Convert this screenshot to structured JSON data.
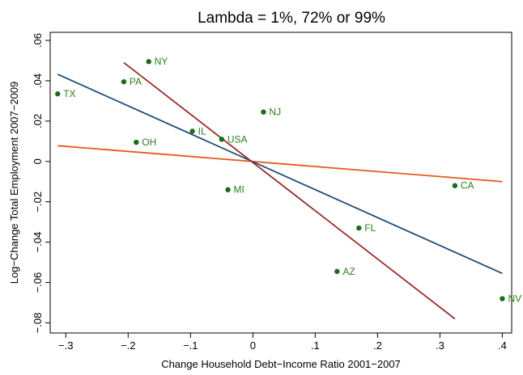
{
  "chart_data": {
    "type": "scatter",
    "title": "Lambda = 1%, 72% or 99%",
    "xlabel": "Change Household Debt−Income Ratio 2001−2007",
    "ylabel": "Log−Change Total Employment 2007−2009",
    "xlim": [
      -0.325,
      0.415
    ],
    "ylim": [
      -0.085,
      0.064
    ],
    "x_ticks": [
      -0.3,
      -0.2,
      -0.1,
      0,
      0.1,
      0.2,
      0.3,
      0.4
    ],
    "x_tick_labels": [
      "−.3",
      "−.2",
      "−.1",
      "0",
      ".1",
      ".2",
      ".3",
      ".4"
    ],
    "y_ticks": [
      -0.08,
      -0.06,
      -0.04,
      -0.02,
      0,
      0.02,
      0.04,
      0.06
    ],
    "y_tick_labels": [
      "−.08",
      "−.06",
      "−.04",
      "−.02",
      "0",
      ".02",
      ".04",
      ".06"
    ],
    "grid": false,
    "points": [
      {
        "label": "NY",
        "x": -0.167,
        "y": 0.0495
      },
      {
        "label": "PA",
        "x": -0.207,
        "y": 0.0395
      },
      {
        "label": "TX",
        "x": -0.313,
        "y": 0.0335
      },
      {
        "label": "NJ",
        "x": 0.017,
        "y": 0.0245
      },
      {
        "label": "IL",
        "x": -0.097,
        "y": 0.015
      },
      {
        "label": "USA",
        "x": -0.05,
        "y": 0.011
      },
      {
        "label": "OH",
        "x": -0.187,
        "y": 0.0095
      },
      {
        "label": "MI",
        "x": -0.04,
        "y": -0.014
      },
      {
        "label": "CA",
        "x": 0.324,
        "y": -0.012
      },
      {
        "label": "FL",
        "x": 0.17,
        "y": -0.033
      },
      {
        "label": "AZ",
        "x": 0.135,
        "y": -0.0545
      },
      {
        "label": "NV",
        "x": 0.4,
        "y": -0.068
      }
    ],
    "fit_lines": [
      {
        "color": "#e8581c",
        "x": [
          -0.313,
          0.4
        ],
        "y": [
          0.0078,
          -0.01
        ]
      },
      {
        "color": "#1f4e79",
        "x": [
          -0.313,
          0.4
        ],
        "y": [
          0.0432,
          -0.0555
        ]
      },
      {
        "color": "#9b2a2a",
        "x": [
          -0.207,
          0.324
        ],
        "y": [
          0.049,
          -0.078
        ]
      }
    ],
    "colors": {
      "points": "#1a6b1a",
      "labels": "#2e7d1e",
      "axis": "#000000"
    }
  }
}
